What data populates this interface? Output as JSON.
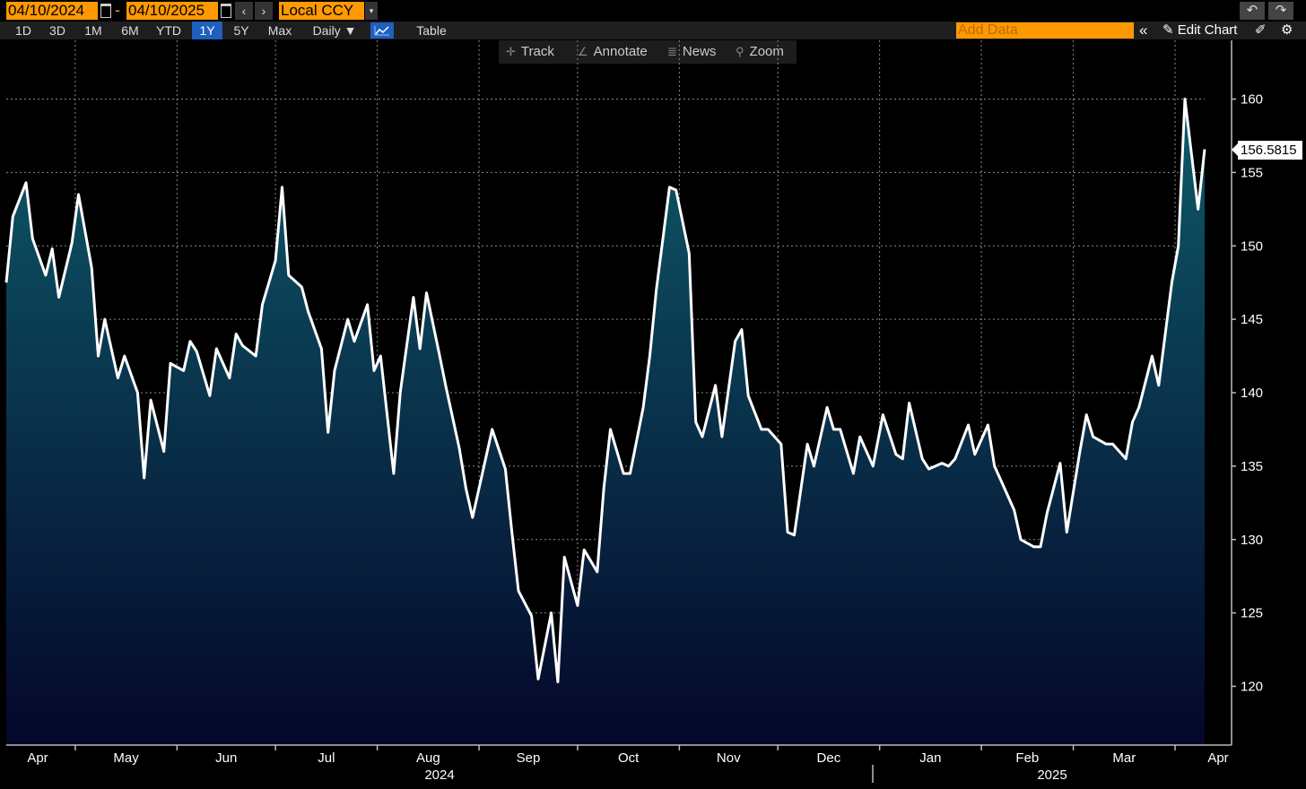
{
  "toolbar": {
    "start_date": "04/10/2024",
    "end_date": "04/10/2025",
    "date_separator": "-",
    "prev_label": "‹",
    "next_label": "›",
    "currency": "Local CCY",
    "currency_arrow": "▾",
    "undo_label": "↶",
    "redo_label": "↷",
    "periods": [
      "1D",
      "3D",
      "1M",
      "6M",
      "YTD",
      "1Y",
      "5Y",
      "Max"
    ],
    "active_period": "1Y",
    "frequency": "Daily ▼",
    "table_label": "Table",
    "add_data_placeholder": "Add Data",
    "collapse_label": "«",
    "edit_chart_label": "Edit Chart",
    "accent_color": "#ff9900",
    "active_color": "#1f5fbf"
  },
  "chart_tools": {
    "track": "Track",
    "annotate": "Annotate",
    "news": "News",
    "zoom": "Zoom"
  },
  "chart_data": {
    "type": "area",
    "line_color": "#ffffff",
    "fill_top_color": "#0e5a6a",
    "fill_bottom_color": "#04072a",
    "last_value": "156.5815",
    "ylim": [
      116,
      164
    ],
    "yticks": [
      120,
      125,
      130,
      135,
      140,
      145,
      150,
      155,
      160
    ],
    "grid": true,
    "x_month_labels": [
      "Apr",
      "May",
      "Jun",
      "Jul",
      "Aug",
      "Sep",
      "Oct",
      "Nov",
      "Dec",
      "Jan",
      "Feb",
      "Mar",
      "Apr"
    ],
    "x_year_labels": [
      "2024",
      "2025"
    ],
    "series": [
      {
        "x": [
          "2024-04-10",
          "2024-04-12",
          "2024-04-16",
          "2024-04-18",
          "2024-04-22",
          "2024-04-24",
          "2024-04-26",
          "2024-04-30",
          "2024-05-02",
          "2024-05-06",
          "2024-05-08",
          "2024-05-10",
          "2024-05-14",
          "2024-05-16",
          "2024-05-20",
          "2024-05-22",
          "2024-05-24",
          "2024-05-28",
          "2024-05-30",
          "2024-06-03",
          "2024-06-05",
          "2024-06-07",
          "2024-06-11",
          "2024-06-13",
          "2024-06-17",
          "2024-06-19",
          "2024-06-21",
          "2024-06-25",
          "2024-06-27",
          "2024-07-01",
          "2024-07-03",
          "2024-07-05",
          "2024-07-09",
          "2024-07-11",
          "2024-07-15",
          "2024-07-17",
          "2024-07-19",
          "2024-07-23",
          "2024-07-25",
          "2024-07-29",
          "2024-07-31",
          "2024-08-02",
          "2024-08-06",
          "2024-08-08",
          "2024-08-12",
          "2024-08-14",
          "2024-08-16",
          "2024-08-20",
          "2024-08-22",
          "2024-08-26",
          "2024-08-28",
          "2024-08-30",
          "2024-09-03",
          "2024-09-05",
          "2024-09-09",
          "2024-09-11",
          "2024-09-13",
          "2024-09-17",
          "2024-09-19",
          "2024-09-23",
          "2024-09-25",
          "2024-09-27",
          "2024-10-01",
          "2024-10-03",
          "2024-10-07",
          "2024-10-09",
          "2024-10-11",
          "2024-10-15",
          "2024-10-17",
          "2024-10-21",
          "2024-10-23",
          "2024-10-25",
          "2024-10-29",
          "2024-10-31",
          "2024-11-04",
          "2024-11-06",
          "2024-11-08",
          "2024-11-12",
          "2024-11-14",
          "2024-11-18",
          "2024-11-20",
          "2024-11-22",
          "2024-11-26",
          "2024-11-28",
          "2024-12-02",
          "2024-12-04",
          "2024-12-06",
          "2024-12-10",
          "2024-12-12",
          "2024-12-16",
          "2024-12-18",
          "2024-12-20",
          "2024-12-24",
          "2024-12-26",
          "2024-12-30",
          "2025-01-02",
          "2025-01-06",
          "2025-01-08",
          "2025-01-10",
          "2025-01-14",
          "2025-01-16",
          "2025-01-20",
          "2025-01-22",
          "2025-01-24",
          "2025-01-28",
          "2025-01-30",
          "2025-02-03",
          "2025-02-05",
          "2025-02-07",
          "2025-02-11",
          "2025-02-13",
          "2025-02-17",
          "2025-02-19",
          "2025-02-21",
          "2025-02-25",
          "2025-02-27",
          "2025-03-03",
          "2025-03-05",
          "2025-03-07",
          "2025-03-11",
          "2025-03-13",
          "2025-03-17",
          "2025-03-19",
          "2025-03-21",
          "2025-03-25",
          "2025-03-27",
          "2025-03-31",
          "2025-04-02",
          "2025-04-04",
          "2025-04-08",
          "2025-04-10"
        ],
        "values": [
          147.5,
          152.0,
          154.3,
          150.5,
          148.0,
          149.8,
          146.5,
          150.2,
          153.5,
          148.5,
          142.5,
          145.0,
          141.0,
          142.5,
          140.0,
          134.2,
          139.5,
          136.0,
          142.0,
          141.5,
          143.5,
          142.8,
          139.8,
          143.0,
          141.0,
          144.0,
          143.2,
          142.5,
          146.0,
          149.0,
          154.0,
          148.0,
          147.2,
          145.5,
          143.0,
          137.3,
          141.5,
          145.0,
          143.5,
          146.0,
          141.5,
          142.5,
          134.5,
          140.0,
          146.5,
          143.0,
          146.8,
          142.5,
          140.3,
          136.2,
          133.5,
          131.5,
          135.5,
          137.5,
          134.8,
          130.5,
          126.5,
          124.8,
          120.5,
          125.0,
          120.3,
          128.8,
          125.5,
          129.3,
          127.8,
          133.5,
          137.5,
          134.5,
          134.5,
          139.0,
          142.5,
          147.0,
          154.0,
          153.8,
          149.5,
          138.0,
          137.0,
          140.5,
          137.0,
          143.5,
          144.3,
          139.8,
          137.5,
          137.5,
          136.5,
          130.5,
          130.3,
          136.5,
          135.0,
          139.0,
          137.5,
          137.5,
          134.5,
          137.0,
          135.0,
          138.5,
          135.8,
          135.5,
          139.3,
          135.5,
          134.8,
          135.2,
          135.0,
          135.5,
          137.8,
          135.8,
          137.8,
          135.0,
          134.0,
          132.0,
          130.0,
          129.5,
          129.5,
          131.8,
          135.2,
          130.5,
          136.0,
          138.5,
          137.0,
          136.5,
          136.5,
          135.5,
          138.0,
          139.0,
          142.5,
          140.5,
          147.5,
          150.0,
          160.0,
          152.5,
          156.58
        ]
      }
    ]
  }
}
